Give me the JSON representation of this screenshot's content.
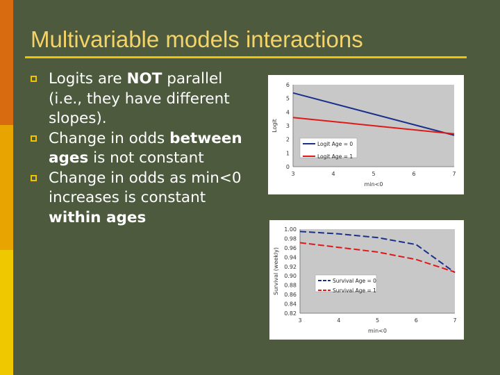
{
  "slide": {
    "title": "Multivariable models interactions",
    "bullets": [
      {
        "parts": [
          {
            "text": "Logits are ",
            "bold": false
          },
          {
            "text": "NOT",
            "bold": true
          },
          {
            "text": " parallel (i.e., they have different slopes).",
            "bold": false
          }
        ]
      },
      {
        "parts": [
          {
            "text": "Change in odds ",
            "bold": false
          },
          {
            "text": "between ages",
            "bold": true
          },
          {
            "text": " is not constant",
            "bold": false
          }
        ]
      },
      {
        "parts": [
          {
            "text": "Change in odds as min<0 increases is constant ",
            "bold": false
          },
          {
            "text": "within ages",
            "bold": true
          }
        ]
      }
    ]
  },
  "colors": {
    "background": "#4d5a3d",
    "title": "#f3d36a",
    "accent": "#f2c400",
    "text": "#ffffff",
    "bar_top": "#d86a10",
    "bar_bottom": "#e8b800",
    "series_age0": "#1a2f8a",
    "series_age1": "#e01818"
  },
  "chart_data": [
    {
      "type": "line",
      "title": "",
      "xlabel": "min<0",
      "ylabel": "Logit",
      "xlim": [
        3,
        7
      ],
      "ylim": [
        0,
        6
      ],
      "xticks": [
        3,
        4,
        5,
        6,
        7
      ],
      "yticks": [
        0,
        1,
        2,
        3,
        4,
        5,
        6
      ],
      "yticklabels": [
        "0",
        "1",
        "2",
        "3",
        "4",
        "5",
        "6"
      ],
      "grid": false,
      "legend": "bottom-center",
      "series": [
        {
          "name": "Logit Age = 0",
          "x": [
            3,
            7
          ],
          "y": [
            5.4,
            2.3
          ],
          "dash": false
        },
        {
          "name": "Logit Age = 1",
          "x": [
            3,
            7
          ],
          "y": [
            3.6,
            2.4
          ],
          "dash": false
        }
      ]
    },
    {
      "type": "line",
      "title": "",
      "xlabel": "min<0",
      "ylabel": "Survival (weekly)",
      "xlim": [
        3,
        7
      ],
      "ylim": [
        0.82,
        1.0
      ],
      "xticks": [
        3,
        4,
        5,
        6,
        7
      ],
      "yticks": [
        0.82,
        0.84,
        0.86,
        0.88,
        0.9,
        0.92,
        0.94,
        0.96,
        0.98,
        1.0
      ],
      "yticklabels": [
        "0.82",
        "0.84",
        "0.86",
        "0.88",
        "0.90",
        "0.92",
        "0.94",
        "0.96",
        "0.98",
        "1.00"
      ],
      "grid": false,
      "legend": "bottom-left",
      "series": [
        {
          "name": "Survival Age = 0",
          "x": [
            3,
            4,
            5,
            6,
            7
          ],
          "y": [
            0.995,
            0.99,
            0.982,
            0.967,
            0.907
          ],
          "dash": true
        },
        {
          "name": "Survival Age = 1",
          "x": [
            3,
            4,
            5,
            6,
            7
          ],
          "y": [
            0.971,
            0.961,
            0.951,
            0.935,
            0.908
          ],
          "dash": true
        }
      ]
    }
  ]
}
